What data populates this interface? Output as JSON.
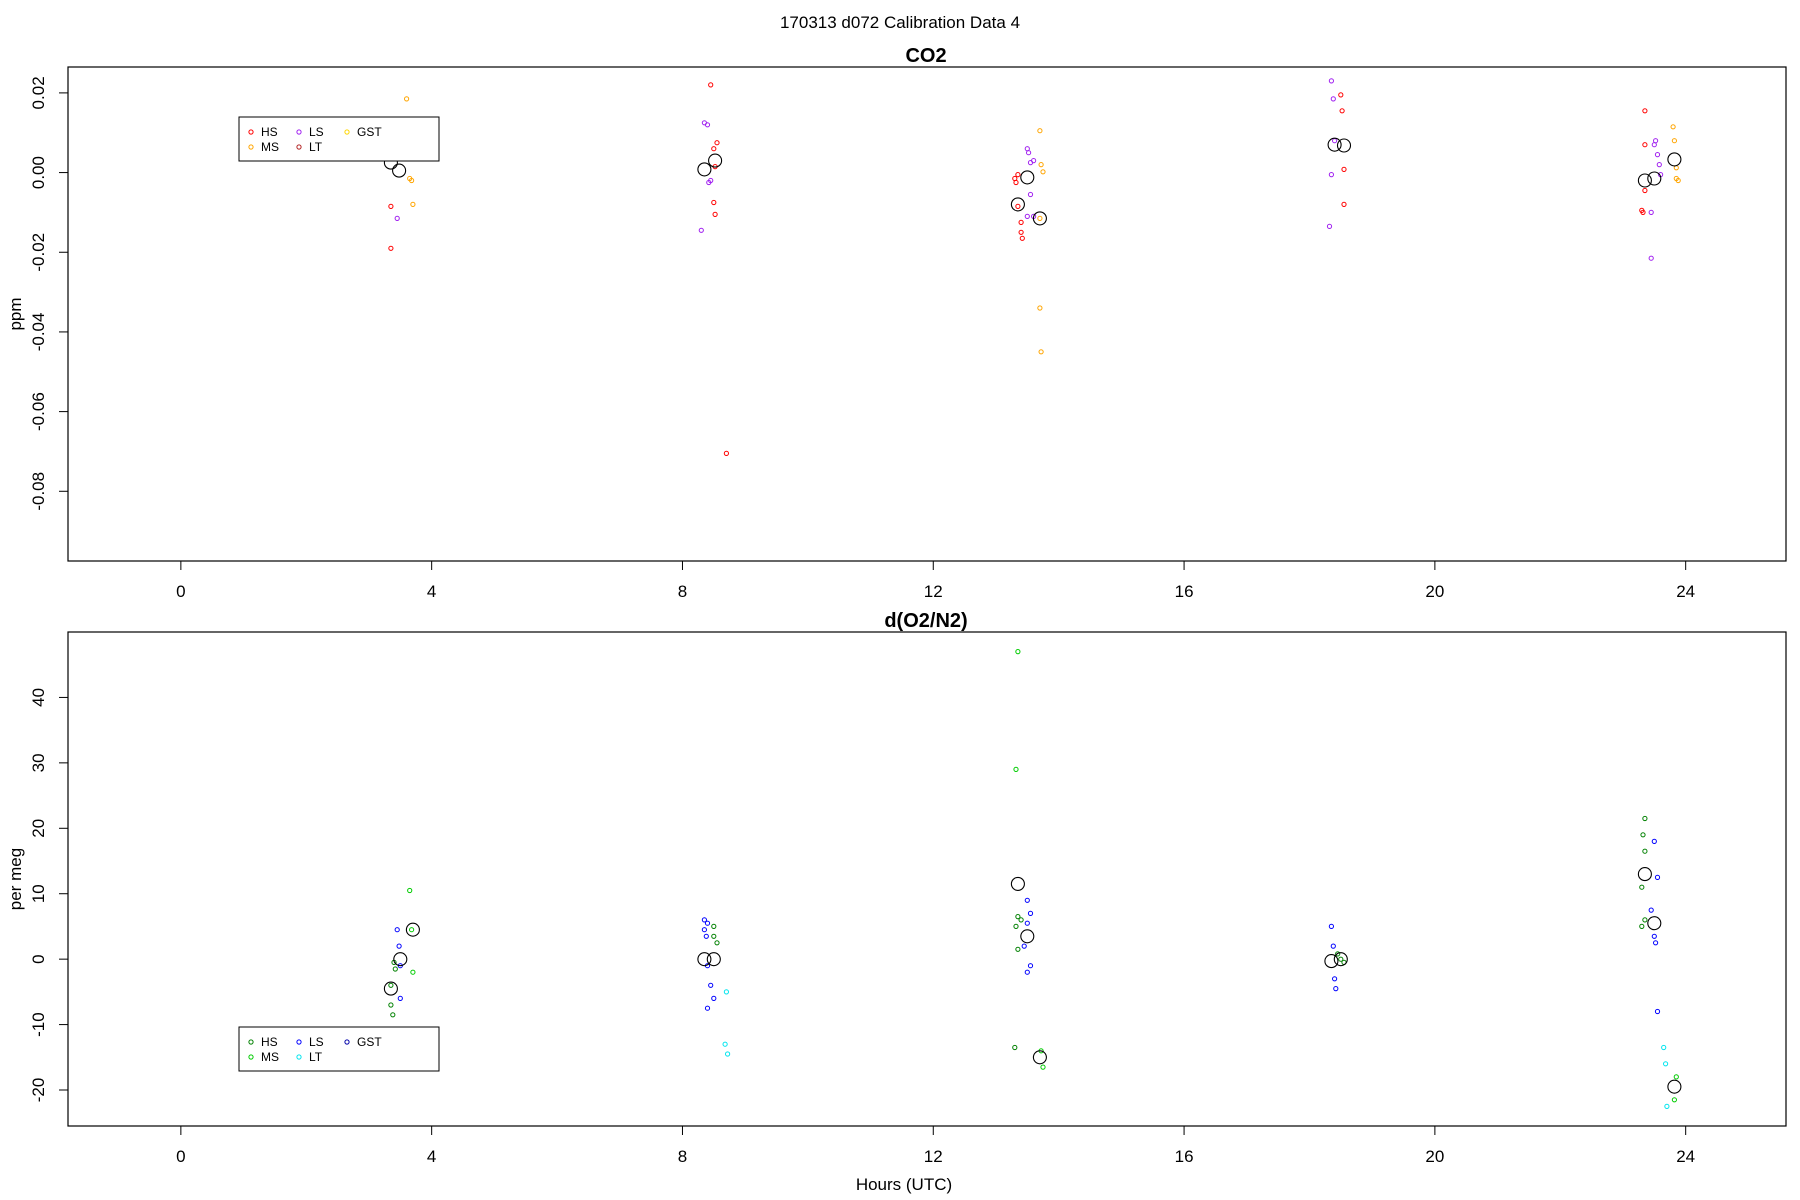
{
  "figure": {
    "title": "170313   d072   Calibration Data 4",
    "xlabel": "Hours (UTC)"
  },
  "chart_data": [
    {
      "type": "scatter",
      "title": "CO2",
      "xlabel": "",
      "ylabel": "ppm",
      "xlim": [
        -1.8,
        25.6
      ],
      "ylim": [
        -0.0975,
        0.0265
      ],
      "xticks": [
        0,
        4,
        8,
        12,
        16,
        20,
        24
      ],
      "yticks": [
        0.02,
        0.0,
        -0.02,
        -0.04,
        -0.06,
        -0.08
      ],
      "ytick_labels": [
        "0.02",
        "0.00",
        "-0.02",
        "-0.04",
        "-0.06",
        "-0.08"
      ],
      "legend": {
        "placement": "top-left",
        "entries": [
          {
            "name": "HS",
            "color": "#ff0000"
          },
          {
            "name": "MS",
            "color": "#ffa500"
          },
          {
            "name": "LS",
            "color": "#a020f0"
          },
          {
            "name": "LT",
            "color": "#b22222"
          },
          {
            "name": "GST",
            "color": "#ffd700"
          }
        ]
      },
      "series": [
        {
          "name": "HS",
          "color": "#ff0000",
          "points": [
            [
              3.35,
              -0.0085
            ],
            [
              3.35,
              -0.019
            ],
            [
              8.45,
              0.022
            ],
            [
              8.5,
              0.006
            ],
            [
              8.52,
              0.0015
            ],
            [
              8.55,
              0.0075
            ],
            [
              8.5,
              -0.0075
            ],
            [
              8.52,
              -0.0105
            ],
            [
              8.7,
              -0.0705
            ],
            [
              13.3,
              -0.0015
            ],
            [
              13.32,
              -0.0025
            ],
            [
              13.35,
              -0.0005
            ],
            [
              13.4,
              -0.0125
            ],
            [
              13.4,
              -0.015
            ],
            [
              13.42,
              -0.0165
            ],
            [
              13.35,
              -0.0085
            ],
            [
              18.5,
              0.0195
            ],
            [
              18.52,
              0.0155
            ],
            [
              18.55,
              0.0008
            ],
            [
              18.55,
              -0.008
            ],
            [
              23.3,
              -0.0095
            ],
            [
              23.32,
              -0.01
            ],
            [
              23.35,
              -0.0045
            ],
            [
              23.35,
              0.0155
            ],
            [
              23.35,
              0.007
            ]
          ]
        },
        {
          "name": "MS",
          "color": "#ffa500",
          "points": [
            [
              3.6,
              0.0185
            ],
            [
              3.65,
              -0.0015
            ],
            [
              3.68,
              -0.002
            ],
            [
              3.7,
              -0.008
            ],
            [
              13.7,
              0.0105
            ],
            [
              13.72,
              0.002
            ],
            [
              13.75,
              0.0002
            ],
            [
              13.7,
              -0.034
            ],
            [
              13.72,
              -0.045
            ],
            [
              13.7,
              -0.0115
            ],
            [
              23.8,
              0.0115
            ],
            [
              23.82,
              0.008
            ],
            [
              23.85,
              0.0012
            ],
            [
              23.85,
              -0.0015
            ],
            [
              23.88,
              -0.002
            ]
          ]
        },
        {
          "name": "LS",
          "color": "#a020f0",
          "points": [
            [
              3.45,
              0.0095
            ],
            [
              3.45,
              -0.0115
            ],
            [
              8.35,
              0.0125
            ],
            [
              8.4,
              0.012
            ],
            [
              8.42,
              -0.0025
            ],
            [
              8.45,
              -0.002
            ],
            [
              8.3,
              -0.0145
            ],
            [
              13.5,
              0.006
            ],
            [
              13.52,
              0.005
            ],
            [
              13.55,
              0.0025
            ],
            [
              13.6,
              0.003
            ],
            [
              13.55,
              -0.0055
            ],
            [
              13.6,
              -0.011
            ],
            [
              13.5,
              -0.011
            ],
            [
              18.35,
              0.023
            ],
            [
              18.38,
              0.0185
            ],
            [
              18.4,
              0.008
            ],
            [
              18.35,
              -0.0005
            ],
            [
              18.32,
              -0.0135
            ],
            [
              23.5,
              0.007
            ],
            [
              23.52,
              0.008
            ],
            [
              23.55,
              0.0045
            ],
            [
              23.58,
              0.002
            ],
            [
              23.6,
              -0.0005
            ],
            [
              23.45,
              -0.01
            ],
            [
              23.45,
              -0.0215
            ]
          ]
        },
        {
          "name": "mean",
          "color": "#000000",
          "mean": true,
          "points": [
            [
              3.35,
              0.0025
            ],
            [
              3.48,
              0.0005
            ],
            [
              3.7,
              0.0055
            ],
            [
              8.35,
              0.0008
            ],
            [
              8.52,
              0.003
            ],
            [
              13.35,
              -0.008
            ],
            [
              13.5,
              -0.0012
            ],
            [
              13.7,
              -0.0115
            ],
            [
              18.4,
              0.007
            ],
            [
              18.55,
              0.0068
            ],
            [
              23.35,
              -0.002
            ],
            [
              23.5,
              -0.0015
            ],
            [
              23.82,
              0.0033
            ]
          ]
        }
      ]
    },
    {
      "type": "scatter",
      "title": "d(O2/N2)",
      "xlabel": "Hours (UTC)",
      "ylabel": "per meg",
      "xlim": [
        -1.8,
        25.6
      ],
      "ylim": [
        -25.5,
        50
      ],
      "xticks": [
        0,
        4,
        8,
        12,
        16,
        20,
        24
      ],
      "yticks": [
        40,
        30,
        20,
        10,
        0,
        -10,
        -20
      ],
      "ytick_labels": [
        "40",
        "30",
        "20",
        "10",
        "0",
        "-10",
        "-20"
      ],
      "legend": {
        "placement": "bottom-left",
        "entries": [
          {
            "name": "HS",
            "color": "#008000"
          },
          {
            "name": "MS",
            "color": "#00cc00"
          },
          {
            "name": "LS",
            "color": "#0000ff"
          },
          {
            "name": "LT",
            "color": "#00e5ee"
          },
          {
            "name": "GST",
            "color": "#0000aa"
          }
        ]
      },
      "series": [
        {
          "name": "HS",
          "color": "#008000",
          "points": [
            [
              3.35,
              -4
            ],
            [
              3.35,
              -7
            ],
            [
              3.38,
              -8.5
            ],
            [
              3.42,
              -1.5
            ],
            [
              3.4,
              -0.5
            ],
            [
              8.5,
              5
            ],
            [
              8.55,
              2.5
            ],
            [
              8.5,
              3.5
            ],
            [
              13.35,
              6.5
            ],
            [
              13.4,
              6
            ],
            [
              13.32,
              5
            ],
            [
              13.35,
              1.5
            ],
            [
              13.3,
              -13.5
            ],
            [
              18.45,
              0.8
            ],
            [
              18.5,
              0
            ],
            [
              18.55,
              -0.5
            ],
            [
              23.35,
              21.5
            ],
            [
              23.32,
              19
            ],
            [
              23.35,
              16.5
            ],
            [
              23.3,
              11
            ],
            [
              23.3,
              5
            ],
            [
              23.35,
              6
            ]
          ]
        },
        {
          "name": "MS",
          "color": "#00cc00",
          "points": [
            [
              3.65,
              10.5
            ],
            [
              3.68,
              4.5
            ],
            [
              3.7,
              -2
            ],
            [
              13.35,
              47
            ],
            [
              13.32,
              29
            ],
            [
              13.72,
              -14
            ],
            [
              13.75,
              -16.5
            ],
            [
              23.85,
              -18
            ],
            [
              23.82,
              -21.5
            ]
          ]
        },
        {
          "name": "LS",
          "color": "#0000ff",
          "points": [
            [
              3.45,
              4.5
            ],
            [
              3.48,
              2
            ],
            [
              3.5,
              -1
            ],
            [
              3.5,
              -6
            ],
            [
              8.35,
              6
            ],
            [
              8.4,
              5.5
            ],
            [
              8.35,
              4.5
            ],
            [
              8.38,
              3.5
            ],
            [
              8.4,
              -1
            ],
            [
              8.45,
              -4
            ],
            [
              8.5,
              -6
            ],
            [
              8.4,
              -7.5
            ],
            [
              13.5,
              9
            ],
            [
              13.55,
              7
            ],
            [
              13.5,
              5.5
            ],
            [
              13.45,
              2
            ],
            [
              13.55,
              -1
            ],
            [
              13.5,
              -2
            ],
            [
              18.35,
              5
            ],
            [
              18.38,
              2
            ],
            [
              18.4,
              -3
            ],
            [
              18.42,
              -4.5
            ],
            [
              23.5,
              18
            ],
            [
              23.55,
              12.5
            ],
            [
              23.45,
              7.5
            ],
            [
              23.5,
              3.5
            ],
            [
              23.52,
              2.5
            ],
            [
              23.55,
              -8
            ]
          ]
        },
        {
          "name": "LT",
          "color": "#00e5ee",
          "points": [
            [
              8.7,
              -5
            ],
            [
              8.68,
              -13
            ],
            [
              8.72,
              -14.5
            ],
            [
              23.65,
              -13.5
            ],
            [
              23.68,
              -16
            ],
            [
              23.7,
              -22.5
            ]
          ]
        },
        {
          "name": "mean",
          "color": "#000000",
          "mean": true,
          "points": [
            [
              3.35,
              -4.5
            ],
            [
              3.5,
              0
            ],
            [
              3.7,
              4.5
            ],
            [
              8.35,
              0
            ],
            [
              8.5,
              0
            ],
            [
              13.35,
              11.5
            ],
            [
              13.5,
              3.5
            ],
            [
              13.7,
              -15
            ],
            [
              18.35,
              -0.3
            ],
            [
              18.5,
              0
            ],
            [
              23.35,
              13
            ],
            [
              23.5,
              5.5
            ],
            [
              23.82,
              -19.5
            ]
          ]
        }
      ]
    }
  ]
}
